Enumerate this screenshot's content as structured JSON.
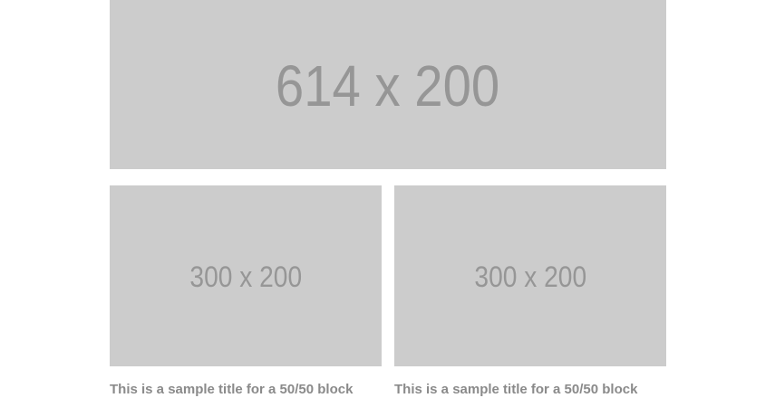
{
  "hero_image": {
    "label": "614 x 200"
  },
  "columns": [
    {
      "image_label": "300 x 200",
      "title": "This is a sample title for a 50/50 block"
    },
    {
      "image_label": "300 x 200",
      "title": "This is a sample title for a 50/50 block"
    }
  ],
  "colors": {
    "placeholder_bg": "#cccccc",
    "placeholder_text": "#969696",
    "title_text": "#8a8a8a",
    "background": "#ffffff"
  }
}
